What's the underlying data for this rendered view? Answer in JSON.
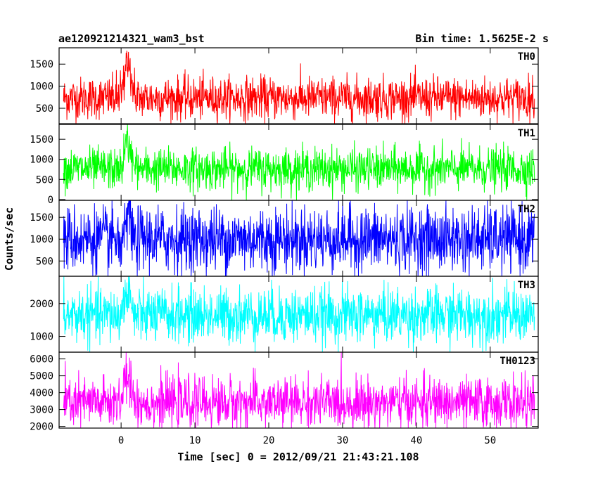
{
  "chart_data": {
    "type": "line",
    "title": "ae120921214321_wam3_bst",
    "bin_time_label": "Bin time: 1.5625E-2 s",
    "xlabel": "Time [sec] 0 = 2012/09/21 21:43:21.108",
    "ylabel": "Counts/sec",
    "xlim": [
      -8.4,
      56.5
    ],
    "xticks": [
      0,
      10,
      20,
      30,
      40,
      50
    ],
    "xtick_labels": [
      "0",
      "10",
      "20",
      "30",
      "40",
      "50"
    ],
    "data_range_x": [
      -7.8,
      56.0
    ],
    "grid": false,
    "series": [
      {
        "name": "TH0",
        "color": "#ff0000",
        "ylim": [
          150,
          1870
        ],
        "yticks": [
          500,
          1000,
          1500
        ],
        "ytick_labels": [
          "500",
          "1000",
          "1500"
        ],
        "baseline_mean": 730,
        "baseline_spread": 240,
        "burst_peak": 1850,
        "burst_center": 0.9
      },
      {
        "name": "TH1",
        "color": "#00ff00",
        "ylim": [
          -20,
          1870
        ],
        "yticks": [
          0,
          500,
          1000,
          1500
        ],
        "ytick_labels": [
          "0",
          "500",
          "1000",
          "1500"
        ],
        "baseline_mean": 760,
        "baseline_spread": 260,
        "burst_peak": 1800,
        "burst_center": 0.9
      },
      {
        "name": "TH2",
        "color": "#0000ff",
        "ylim": [
          150,
          1890
        ],
        "yticks": [
          500,
          1000,
          1500
        ],
        "ytick_labels": [
          "500",
          "1000",
          "1500"
        ],
        "baseline_mean": 1000,
        "baseline_spread": 380,
        "burst_peak": 1850,
        "burst_center": 0.9
      },
      {
        "name": "TH3",
        "color": "#00ffff",
        "ylim": [
          520,
          2830
        ],
        "yticks": [
          1000,
          2000
        ],
        "ytick_labels": [
          "1000",
          "2000"
        ],
        "baseline_mean": 1640,
        "baseline_spread": 420,
        "burst_peak": 2700,
        "burst_center": 0.9
      },
      {
        "name": "TH0123",
        "color": "#ff00ff",
        "ylim": [
          1900,
          6400
        ],
        "yticks": [
          2000,
          3000,
          4000,
          5000,
          6000
        ],
        "ytick_labels": [
          "2000",
          "3000",
          "4000",
          "5000",
          "6000"
        ],
        "baseline_mean": 3400,
        "baseline_spread": 750,
        "burst_peak": 6300,
        "burst_center": 0.9
      }
    ]
  }
}
